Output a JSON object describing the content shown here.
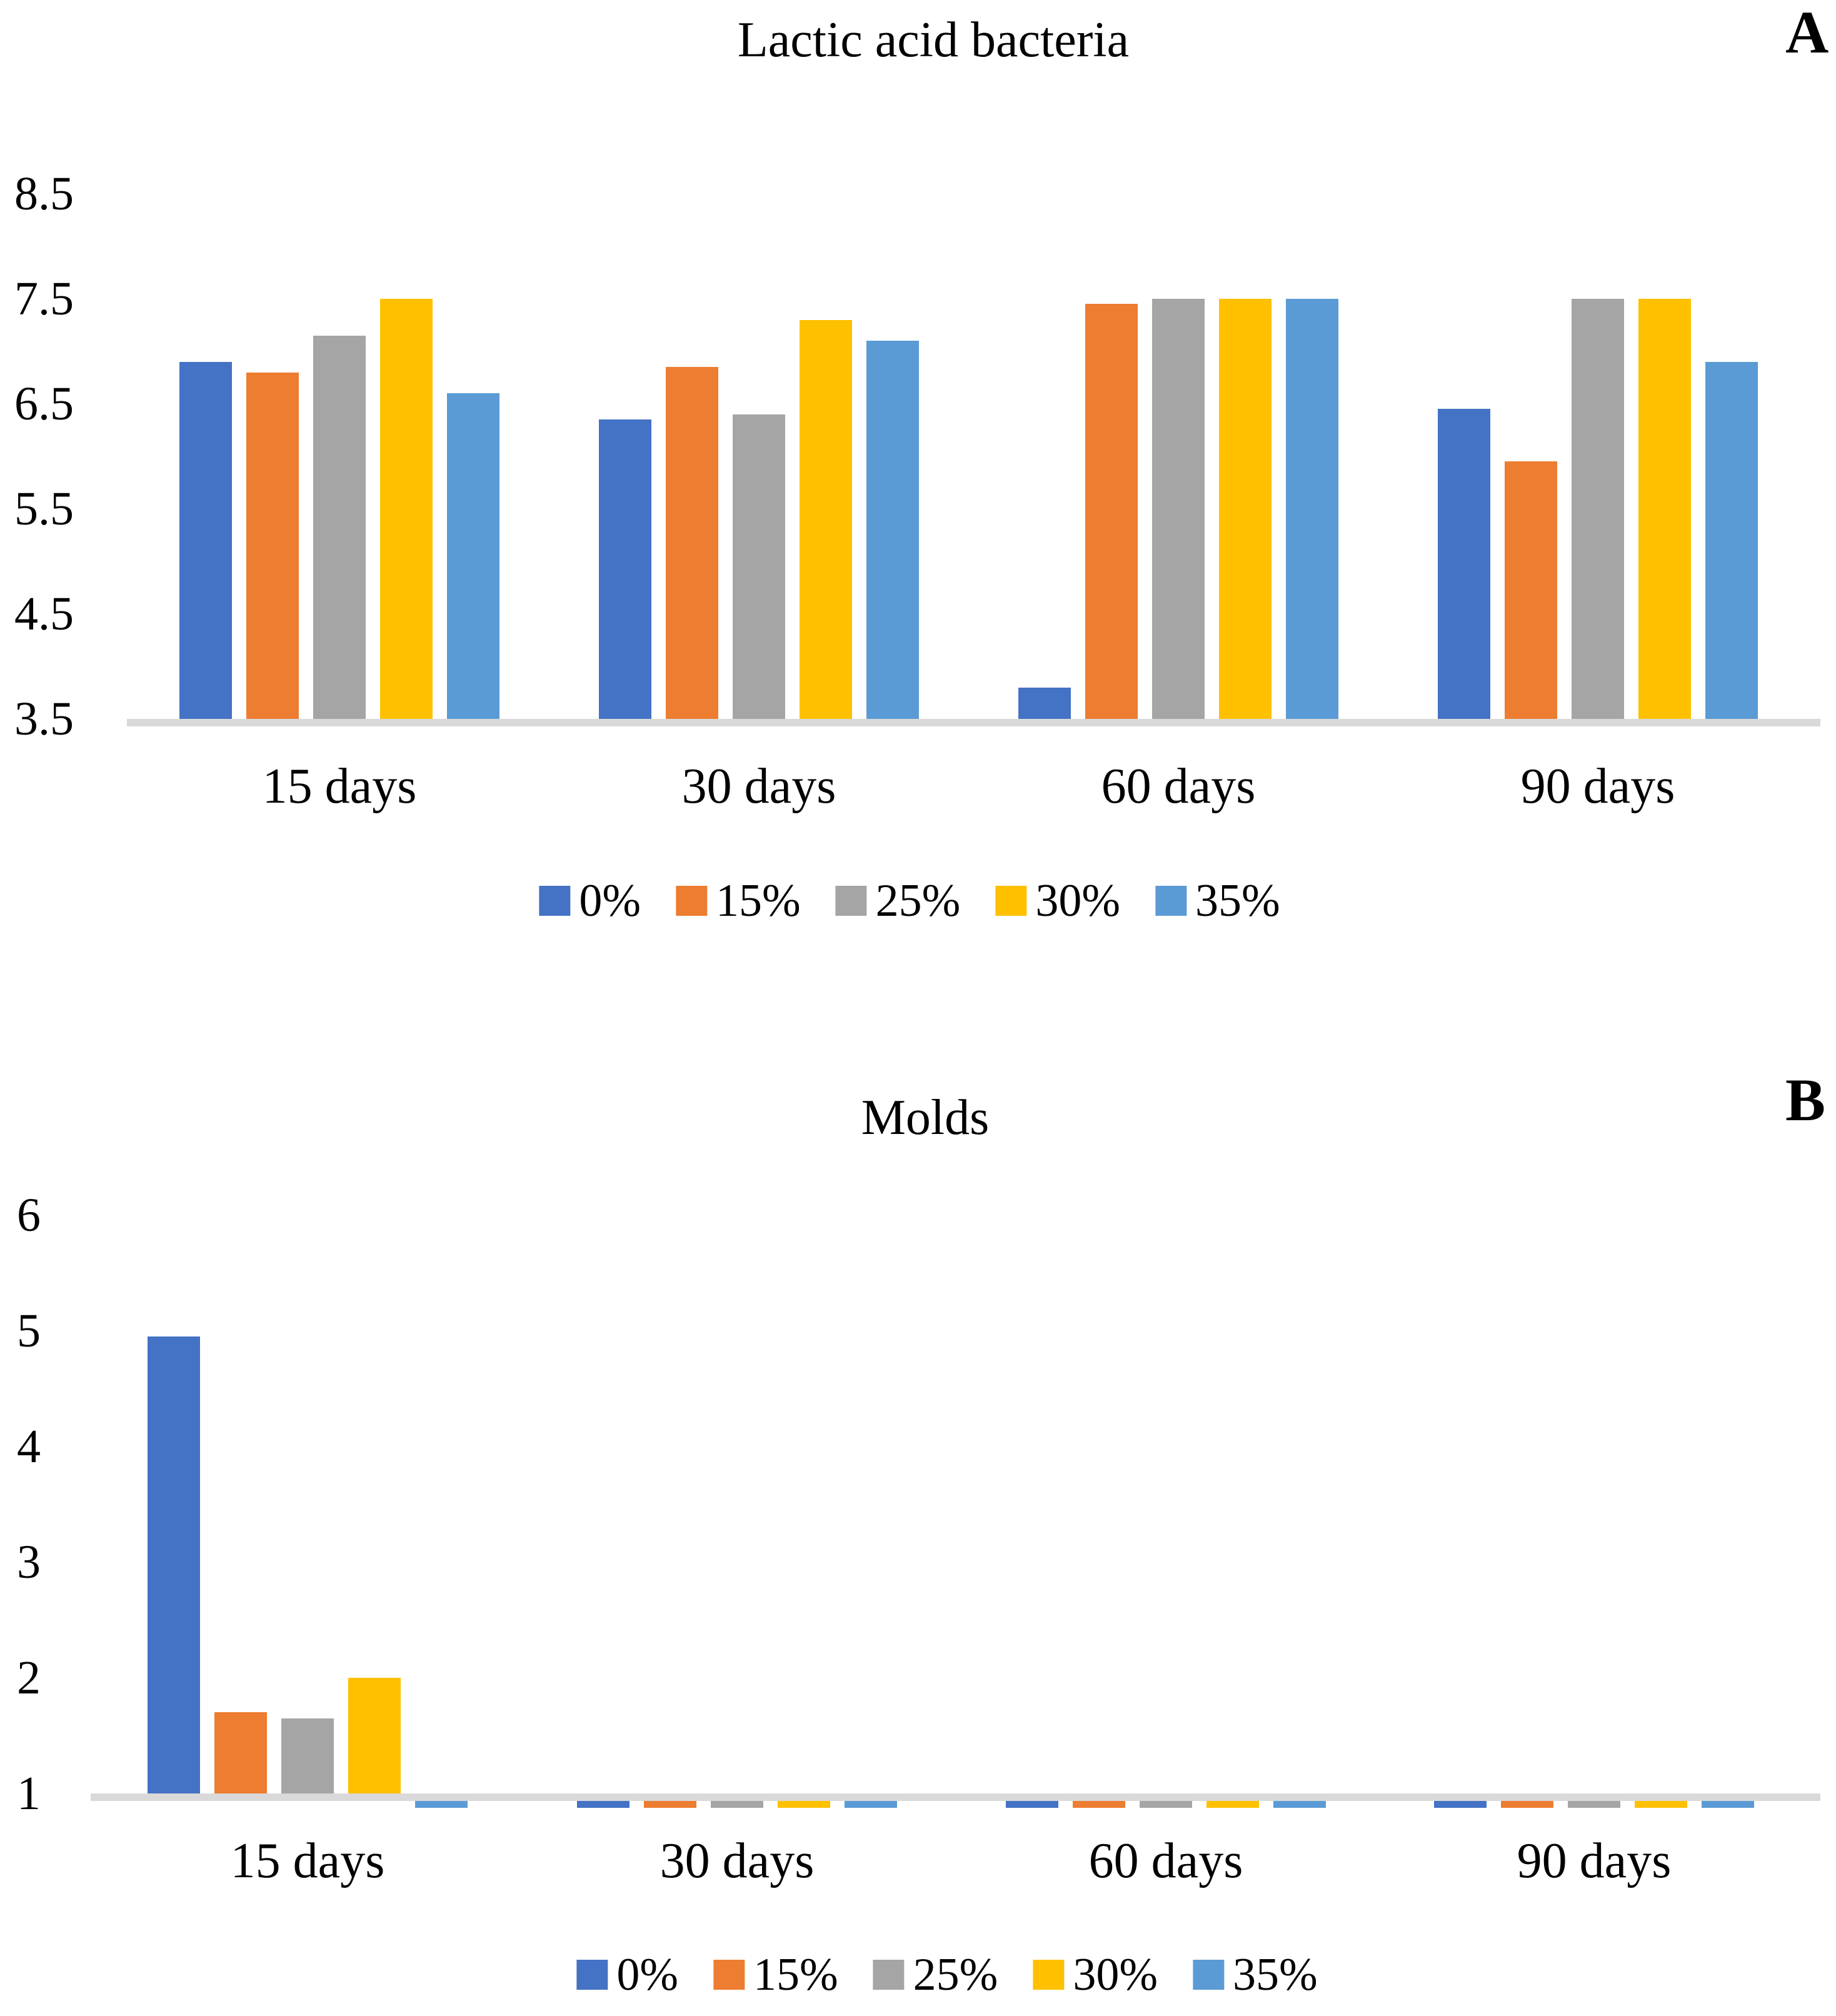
{
  "figure": {
    "background": "#ffffff",
    "text_color": "#000000",
    "axis_line_color": "#D9D9D9"
  },
  "series_labels": [
    "0%",
    "15%",
    "25%",
    "30%",
    "35%"
  ],
  "series_colors": [
    "#4472C4",
    "#ED7D31",
    "#A5A5A5",
    "#FFC000",
    "#5B9BD5"
  ],
  "chart_data": [
    {
      "type": "bar",
      "panel_label": "A",
      "title": "Lactic acid bacteria",
      "xlabel": "",
      "ylabel": "",
      "categories": [
        "15 days",
        "30 days",
        "60 days",
        "90 days"
      ],
      "y_tick_labels": [
        "8.5",
        "7.5",
        "6.5",
        "5.5",
        "4.5",
        "3.5"
      ],
      "ylim": [
        3.5,
        8.5
      ],
      "grid": false,
      "legend_position": "bottom",
      "series": [
        {
          "name": "0%",
          "values": [
            6.9,
            6.35,
            3.8,
            6.45
          ]
        },
        {
          "name": "15%",
          "values": [
            6.8,
            6.85,
            7.45,
            5.95
          ]
        },
        {
          "name": "25%",
          "values": [
            7.15,
            6.4,
            7.5,
            7.5
          ]
        },
        {
          "name": "30%",
          "values": [
            7.5,
            7.3,
            7.5,
            7.5
          ]
        },
        {
          "name": "35%",
          "values": [
            6.6,
            7.1,
            7.5,
            6.9
          ]
        }
      ]
    },
    {
      "type": "bar",
      "panel_label": "B",
      "title": "Molds",
      "xlabel": "",
      "ylabel": "",
      "categories": [
        "15 days",
        "30 days",
        "60 days",
        "90 days"
      ],
      "y_tick_labels": [
        "6",
        "5",
        "4",
        "3",
        "2",
        "1"
      ],
      "ylim": [
        1,
        6
      ],
      "grid": false,
      "legend_position": "bottom",
      "series": [
        {
          "name": "0%",
          "values": [
            4.95,
            1,
            1,
            1
          ]
        },
        {
          "name": "15%",
          "values": [
            1.7,
            1,
            1,
            1
          ]
        },
        {
          "name": "25%",
          "values": [
            1.65,
            1,
            1,
            1
          ]
        },
        {
          "name": "30%",
          "values": [
            2.0,
            1,
            1,
            1
          ]
        },
        {
          "name": "35%",
          "values": [
            1.0,
            1,
            1,
            1
          ]
        }
      ]
    }
  ]
}
